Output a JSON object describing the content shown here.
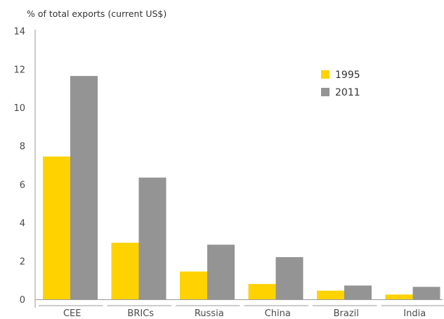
{
  "chart_data": {
    "type": "bar",
    "title": "",
    "ylabel": "% of total exports (current US$)",
    "xlabel": "",
    "categories": [
      "CEE",
      "BRICs",
      "Russia",
      "China",
      "Brazil",
      "India"
    ],
    "series": [
      {
        "name": "1995",
        "color": "#ffd200",
        "values": [
          7.45,
          2.95,
          1.45,
          0.8,
          0.45,
          0.25
        ]
      },
      {
        "name": "2011",
        "color": "#949494",
        "values": [
          11.65,
          6.35,
          2.85,
          2.2,
          0.72,
          0.65
        ]
      }
    ],
    "ylim": [
      0,
      14
    ],
    "yticks": [
      0,
      2,
      4,
      6,
      8,
      10,
      12,
      14
    ],
    "grid": false,
    "legend_position": "top-right"
  }
}
